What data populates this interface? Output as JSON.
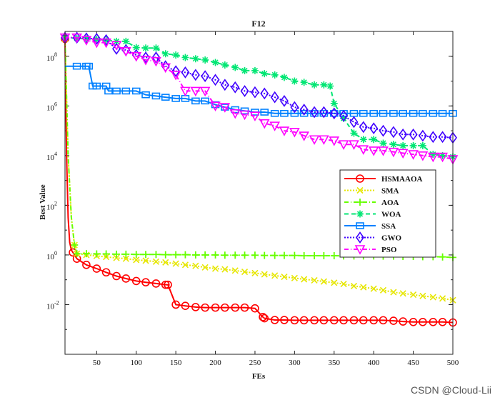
{
  "chart_data": {
    "type": "line",
    "title": "F12",
    "xlabel": "FEs",
    "ylabel": "Best Value",
    "xlim": [
      10,
      500
    ],
    "y_log": true,
    "ylim_log10": [
      -4,
      9
    ],
    "x_ticks": [
      50,
      100,
      150,
      200,
      250,
      300,
      350,
      400,
      450,
      500
    ],
    "y_ticks": [
      {
        "exp": 0,
        "text": "10",
        "sup": "0"
      },
      {
        "exp": 2,
        "text": "10",
        "sup": "2"
      },
      {
        "exp": 4,
        "text": "10",
        "sup": "4"
      },
      {
        "exp": 6,
        "text": "10",
        "sup": "6"
      },
      {
        "exp": 8,
        "text": "10",
        "sup": "8"
      },
      {
        "exp": -2,
        "text": "10",
        "sup": "-2"
      }
    ],
    "legend_position": "center-right",
    "series": [
      {
        "name": "HSMAAOA",
        "color": "#ff0000",
        "marker": "circle",
        "dash": "",
        "points": [
          [
            10,
            8.7
          ],
          [
            12,
            4
          ],
          [
            14,
            1.5
          ],
          [
            16,
            0.5
          ],
          [
            18,
            0.2
          ],
          [
            20,
            0.1
          ],
          [
            25,
            -0.15
          ],
          [
            37,
            -0.4
          ],
          [
            50,
            -0.55
          ],
          [
            62,
            -0.7
          ],
          [
            75,
            -0.85
          ],
          [
            87,
            -0.95
          ],
          [
            100,
            -1.05
          ],
          [
            112,
            -1.1
          ],
          [
            125,
            -1.15
          ],
          [
            137,
            -1.2
          ],
          [
            140,
            -1.2
          ],
          [
            150,
            -2.0
          ],
          [
            162,
            -2.05
          ],
          [
            175,
            -2.1
          ],
          [
            187,
            -2.12
          ],
          [
            200,
            -2.12
          ],
          [
            212,
            -2.12
          ],
          [
            225,
            -2.12
          ],
          [
            237,
            -2.12
          ],
          [
            250,
            -2.15
          ],
          [
            260,
            -2.5
          ],
          [
            262,
            -2.55
          ],
          [
            275,
            -2.62
          ],
          [
            287,
            -2.62
          ],
          [
            300,
            -2.63
          ],
          [
            312,
            -2.63
          ],
          [
            325,
            -2.63
          ],
          [
            337,
            -2.63
          ],
          [
            350,
            -2.63
          ],
          [
            362,
            -2.63
          ],
          [
            375,
            -2.63
          ],
          [
            387,
            -2.63
          ],
          [
            400,
            -2.63
          ],
          [
            412,
            -2.63
          ],
          [
            425,
            -2.65
          ],
          [
            437,
            -2.68
          ],
          [
            450,
            -2.7
          ],
          [
            462,
            -2.7
          ],
          [
            475,
            -2.7
          ],
          [
            487,
            -2.7
          ],
          [
            500,
            -2.72
          ]
        ]
      },
      {
        "name": "SMA",
        "color": "#e6e600",
        "marker": "x",
        "dash": "2,2",
        "points": [
          [
            10,
            8.7
          ],
          [
            14,
            4
          ],
          [
            18,
            1.5
          ],
          [
            22,
            0.4
          ],
          [
            25,
            0.05
          ],
          [
            37,
            0.0
          ],
          [
            50,
            -0.04
          ],
          [
            62,
            -0.08
          ],
          [
            75,
            -0.12
          ],
          [
            87,
            -0.15
          ],
          [
            100,
            -0.2
          ],
          [
            112,
            -0.23
          ],
          [
            125,
            -0.27
          ],
          [
            137,
            -0.3
          ],
          [
            150,
            -0.35
          ],
          [
            162,
            -0.4
          ],
          [
            175,
            -0.44
          ],
          [
            187,
            -0.5
          ],
          [
            200,
            -0.55
          ],
          [
            212,
            -0.58
          ],
          [
            225,
            -0.63
          ],
          [
            237,
            -0.68
          ],
          [
            250,
            -0.73
          ],
          [
            262,
            -0.78
          ],
          [
            275,
            -0.83
          ],
          [
            287,
            -0.88
          ],
          [
            300,
            -0.93
          ],
          [
            312,
            -0.98
          ],
          [
            325,
            -1.02
          ],
          [
            337,
            -1.07
          ],
          [
            350,
            -1.12
          ],
          [
            362,
            -1.17
          ],
          [
            375,
            -1.25
          ],
          [
            387,
            -1.3
          ],
          [
            400,
            -1.36
          ],
          [
            412,
            -1.42
          ],
          [
            425,
            -1.5
          ],
          [
            437,
            -1.55
          ],
          [
            450,
            -1.6
          ],
          [
            462,
            -1.65
          ],
          [
            475,
            -1.7
          ],
          [
            487,
            -1.75
          ],
          [
            500,
            -1.82
          ]
        ]
      },
      {
        "name": "AOA",
        "color": "#66ff00",
        "marker": "plus",
        "dash": "6,3,1,3",
        "points": [
          [
            10,
            8.7
          ],
          [
            14,
            4
          ],
          [
            18,
            1.5
          ],
          [
            22,
            0.4
          ],
          [
            25,
            0.05
          ],
          [
            37,
            0.05
          ],
          [
            50,
            0.04
          ],
          [
            62,
            0.04
          ],
          [
            75,
            0.03
          ],
          [
            87,
            0.03
          ],
          [
            100,
            0.02
          ],
          [
            112,
            0.02
          ],
          [
            125,
            0.02
          ],
          [
            137,
            0.01
          ],
          [
            150,
            0.01
          ],
          [
            162,
            0.01
          ],
          [
            175,
            0.0
          ],
          [
            187,
            0.0
          ],
          [
            200,
            0.0
          ],
          [
            212,
            -0.01
          ],
          [
            225,
            -0.01
          ],
          [
            237,
            -0.01
          ],
          [
            250,
            -0.01
          ],
          [
            262,
            -0.02
          ],
          [
            275,
            -0.02
          ],
          [
            287,
            -0.02
          ],
          [
            300,
            -0.02
          ],
          [
            312,
            -0.03
          ],
          [
            325,
            -0.03
          ],
          [
            337,
            -0.03
          ],
          [
            350,
            -0.03
          ],
          [
            362,
            -0.04
          ],
          [
            375,
            -0.04
          ],
          [
            387,
            -0.04
          ],
          [
            400,
            -0.04
          ],
          [
            412,
            -0.05
          ],
          [
            425,
            -0.05
          ],
          [
            437,
            -0.06
          ],
          [
            450,
            -0.06
          ],
          [
            462,
            -0.07
          ],
          [
            475,
            -0.07
          ],
          [
            487,
            -0.08
          ],
          [
            500,
            -0.1
          ]
        ]
      },
      {
        "name": "WOA",
        "color": "#00e673",
        "marker": "star",
        "dash": "6,4",
        "points": [
          [
            10,
            8.75
          ],
          [
            25,
            8.72
          ],
          [
            37,
            8.7
          ],
          [
            50,
            8.68
          ],
          [
            62,
            8.65
          ],
          [
            75,
            8.6
          ],
          [
            87,
            8.6
          ],
          [
            100,
            8.35
          ],
          [
            112,
            8.33
          ],
          [
            125,
            8.33
          ],
          [
            137,
            8.1
          ],
          [
            150,
            8.05
          ],
          [
            162,
            7.95
          ],
          [
            175,
            7.9
          ],
          [
            187,
            7.85
          ],
          [
            200,
            7.75
          ],
          [
            212,
            7.65
          ],
          [
            225,
            7.55
          ],
          [
            237,
            7.42
          ],
          [
            250,
            7.42
          ],
          [
            262,
            7.3
          ],
          [
            275,
            7.25
          ],
          [
            287,
            7.15
          ],
          [
            300,
            7.0
          ],
          [
            312,
            6.95
          ],
          [
            325,
            6.85
          ],
          [
            337,
            6.85
          ],
          [
            345,
            6.8
          ],
          [
            350,
            6.1
          ],
          [
            362,
            5.5
          ],
          [
            375,
            4.9
          ],
          [
            387,
            4.65
          ],
          [
            400,
            4.65
          ],
          [
            412,
            4.5
          ],
          [
            425,
            4.45
          ],
          [
            437,
            4.4
          ],
          [
            450,
            4.4
          ],
          [
            462,
            4.4
          ],
          [
            475,
            4.05
          ],
          [
            487,
            4.0
          ],
          [
            500,
            3.95
          ]
        ]
      },
      {
        "name": "SSA",
        "color": "#0080ff",
        "marker": "square",
        "dash": "",
        "points": [
          [
            10,
            7.6
          ],
          [
            25,
            7.6
          ],
          [
            37,
            7.6
          ],
          [
            40,
            7.6
          ],
          [
            45,
            6.8
          ],
          [
            50,
            6.8
          ],
          [
            62,
            6.8
          ],
          [
            65,
            6.6
          ],
          [
            75,
            6.6
          ],
          [
            87,
            6.6
          ],
          [
            100,
            6.6
          ],
          [
            112,
            6.45
          ],
          [
            125,
            6.4
          ],
          [
            137,
            6.35
          ],
          [
            150,
            6.3
          ],
          [
            162,
            6.3
          ],
          [
            175,
            6.2
          ],
          [
            187,
            6.2
          ],
          [
            200,
            6.05
          ],
          [
            212,
            5.95
          ],
          [
            225,
            5.85
          ],
          [
            237,
            5.8
          ],
          [
            250,
            5.75
          ],
          [
            262,
            5.75
          ],
          [
            275,
            5.7
          ],
          [
            287,
            5.7
          ],
          [
            300,
            5.7
          ],
          [
            312,
            5.7
          ],
          [
            325,
            5.7
          ],
          [
            337,
            5.7
          ],
          [
            350,
            5.7
          ],
          [
            362,
            5.7
          ],
          [
            375,
            5.7
          ],
          [
            387,
            5.7
          ],
          [
            400,
            5.7
          ],
          [
            412,
            5.7
          ],
          [
            425,
            5.7
          ],
          [
            437,
            5.7
          ],
          [
            450,
            5.7
          ],
          [
            462,
            5.7
          ],
          [
            475,
            5.7
          ],
          [
            487,
            5.7
          ],
          [
            500,
            5.7
          ]
        ]
      },
      {
        "name": "GWO",
        "color": "#4000ff",
        "marker": "diamond",
        "dash": "2,2",
        "points": [
          [
            10,
            8.75
          ],
          [
            25,
            8.75
          ],
          [
            37,
            8.72
          ],
          [
            50,
            8.7
          ],
          [
            62,
            8.65
          ],
          [
            75,
            8.3
          ],
          [
            87,
            8.25
          ],
          [
            100,
            8.05
          ],
          [
            112,
            7.95
          ],
          [
            125,
            7.95
          ],
          [
            137,
            7.6
          ],
          [
            150,
            7.4
          ],
          [
            162,
            7.35
          ],
          [
            175,
            7.25
          ],
          [
            187,
            7.2
          ],
          [
            200,
            7.05
          ],
          [
            212,
            6.85
          ],
          [
            225,
            6.75
          ],
          [
            237,
            6.6
          ],
          [
            250,
            6.55
          ],
          [
            262,
            6.5
          ],
          [
            275,
            6.35
          ],
          [
            287,
            6.2
          ],
          [
            300,
            5.95
          ],
          [
            312,
            5.85
          ],
          [
            325,
            5.75
          ],
          [
            337,
            5.75
          ],
          [
            350,
            5.7
          ],
          [
            362,
            5.6
          ],
          [
            375,
            5.35
          ],
          [
            387,
            5.15
          ],
          [
            400,
            5.1
          ],
          [
            412,
            5.0
          ],
          [
            425,
            4.95
          ],
          [
            437,
            4.85
          ],
          [
            450,
            4.85
          ],
          [
            462,
            4.8
          ],
          [
            475,
            4.75
          ],
          [
            487,
            4.75
          ],
          [
            500,
            4.72
          ]
        ]
      },
      {
        "name": "PSO",
        "color": "#ff00ff",
        "marker": "triangle",
        "dash": "6,3,1,3",
        "points": [
          [
            10,
            8.75
          ],
          [
            25,
            8.75
          ],
          [
            37,
            8.65
          ],
          [
            50,
            8.55
          ],
          [
            62,
            8.55
          ],
          [
            75,
            8.45
          ],
          [
            87,
            8.2
          ],
          [
            100,
            8.0
          ],
          [
            112,
            7.85
          ],
          [
            125,
            7.8
          ],
          [
            137,
            7.55
          ],
          [
            150,
            7.25
          ],
          [
            162,
            6.6
          ],
          [
            175,
            6.6
          ],
          [
            187,
            6.6
          ],
          [
            200,
            6.0
          ],
          [
            212,
            5.95
          ],
          [
            225,
            5.7
          ],
          [
            237,
            5.65
          ],
          [
            250,
            5.6
          ],
          [
            262,
            5.3
          ],
          [
            275,
            5.2
          ],
          [
            287,
            5.0
          ],
          [
            300,
            4.95
          ],
          [
            312,
            4.8
          ],
          [
            325,
            4.65
          ],
          [
            337,
            4.65
          ],
          [
            350,
            4.6
          ],
          [
            362,
            4.45
          ],
          [
            375,
            4.45
          ],
          [
            387,
            4.25
          ],
          [
            400,
            4.2
          ],
          [
            412,
            4.2
          ],
          [
            425,
            4.15
          ],
          [
            437,
            4.1
          ],
          [
            450,
            4.05
          ],
          [
            462,
            4.0
          ],
          [
            475,
            3.95
          ],
          [
            487,
            3.95
          ],
          [
            500,
            3.85
          ]
        ]
      }
    ]
  },
  "watermark": "CSDN @Cloud-Lii"
}
